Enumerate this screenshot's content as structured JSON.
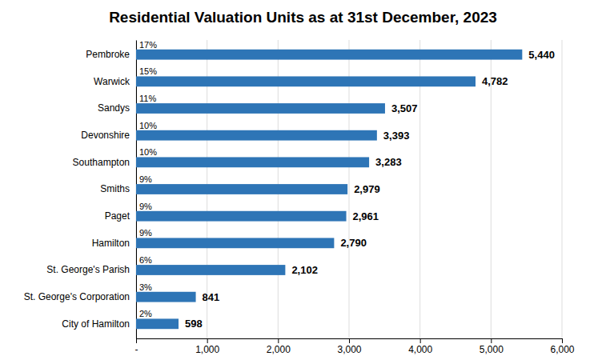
{
  "chart_data": {
    "type": "bar",
    "orientation": "horizontal",
    "title": "Residential Valuation Units as at 31st December, 2023",
    "categories": [
      "City of Hamilton",
      "St. George's Corporation",
      "St. George's Parish",
      "Hamilton",
      "Paget",
      "Smiths",
      "Southampton",
      "Devonshire",
      "Sandys",
      "Warwick",
      "Pembroke"
    ],
    "values": [
      598,
      841,
      2102,
      2790,
      2961,
      2979,
      3283,
      3393,
      3507,
      4782,
      5440
    ],
    "value_labels": [
      "598",
      "841",
      "2,102",
      "2,790",
      "2,961",
      "2,979",
      "3,283",
      "3,393",
      "3,507",
      "4,782",
      "5,440"
    ],
    "data_labels": true,
    "percentages": [
      "2%",
      "3%",
      "6%",
      "9%",
      "9%",
      "9%",
      "10%",
      "10%",
      "11%",
      "15%",
      "17%"
    ],
    "color": "#2E75B6",
    "xlim": [
      0,
      6000
    ],
    "xticks": [
      {
        "value": 0,
        "label": "-"
      },
      {
        "value": 1000,
        "label": "1,000"
      },
      {
        "value": 2000,
        "label": "2,000"
      },
      {
        "value": 3000,
        "label": "3,000"
      },
      {
        "value": 4000,
        "label": "4,000"
      },
      {
        "value": 5000,
        "label": "5,000"
      },
      {
        "value": 6000,
        "label": "6,000"
      }
    ],
    "grid": true
  }
}
